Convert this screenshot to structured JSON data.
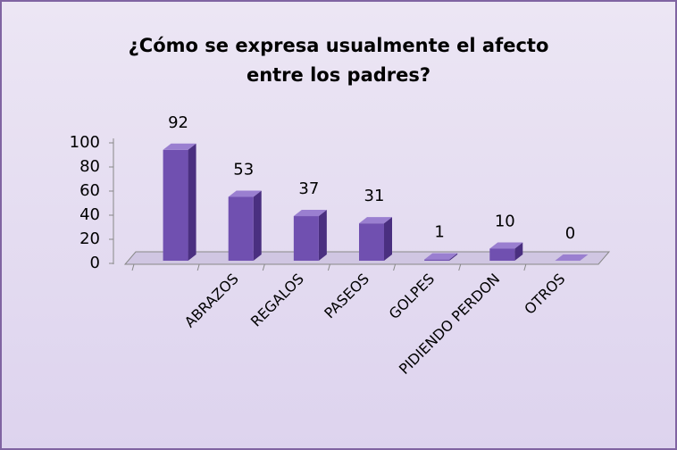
{
  "chart_data": {
    "type": "bar3d",
    "title": "¿Cómo se expresa usualmente el afecto entre los padres?",
    "categories": [
      null,
      "ABRAZOS",
      "REGALOS",
      "PASEOS",
      "GOLPES",
      "PIDIENDO PERDON",
      "OTROS"
    ],
    "values": [
      92,
      53,
      37,
      31,
      1,
      10,
      0
    ],
    "color": "#7050b0",
    "ylim": [
      0,
      100
    ],
    "yticks": [
      0,
      20,
      40,
      60,
      80,
      100
    ],
    "grid": false
  }
}
